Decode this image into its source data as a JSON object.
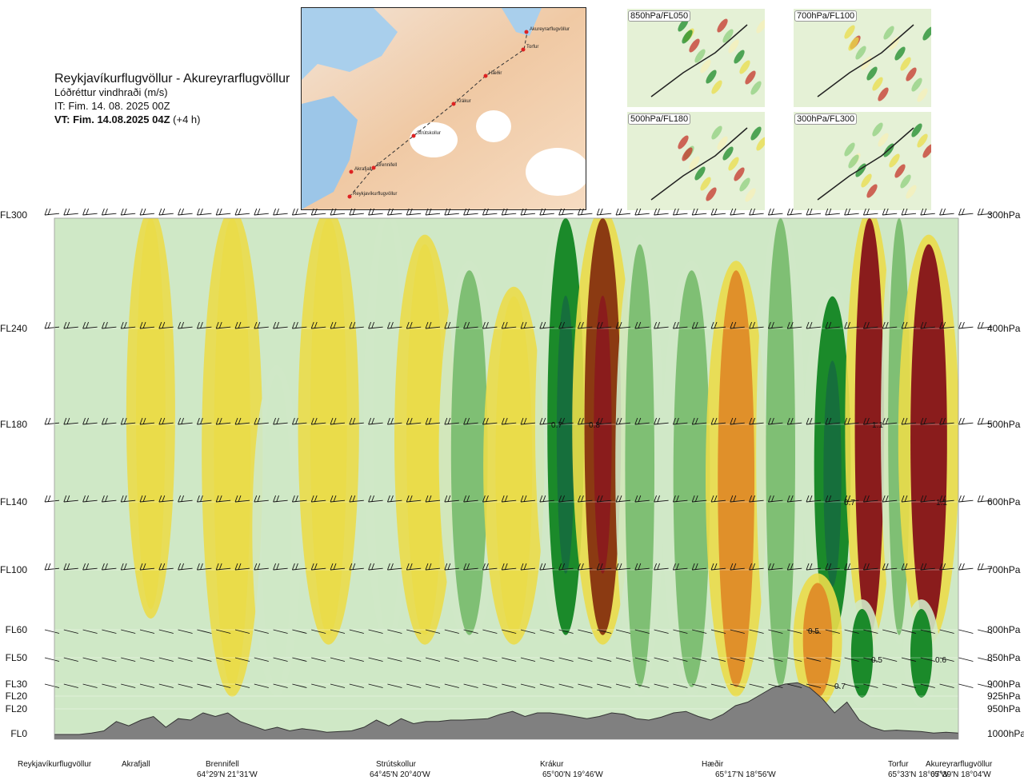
{
  "header": {
    "route": "Reykjavíkurflugvöllur - Akureyrarflugvöllur",
    "variable": "Lóðréttur vindhraði (m/s)",
    "init_time": "IT: Fim. 14. 08. 2025 00Z",
    "valid_time_bold": "VT: Fim. 14.08.2025 04Z",
    "valid_time_offset": "(+4 h)"
  },
  "map": {
    "points": [
      "Akureyrarflugvöllur",
      "Torfur",
      "Hæðir",
      "Krákur",
      "Strútskollur",
      "Brennifell",
      "Akrafjall",
      "Reykjavíkurflugvöllur"
    ]
  },
  "thumbnails": [
    {
      "label": "850hPa/FL050"
    },
    {
      "label": "700hPa/FL100"
    },
    {
      "label": "500hPa/FL180"
    },
    {
      "label": "300hPa/FL300"
    }
  ],
  "colors": {
    "strong_down": "#8a1c1c",
    "down": "#8b3a12",
    "weak_down": "#e0902a",
    "faint_down": "#eadc4a",
    "neutral": "#f6efb8",
    "faint_up": "#cfe8c6",
    "up": "#7fbf74",
    "strong_up": "#1b8a2a",
    "terrain": "#808080"
  },
  "chart_data": {
    "type": "heatmap",
    "title": "Lóðréttur vindhraði (m/s)",
    "flight_levels": [
      {
        "fl": "FL300",
        "hpa": "300hPa"
      },
      {
        "fl": "FL240",
        "hpa": "400hPa"
      },
      {
        "fl": "FL180",
        "hpa": "500hPa"
      },
      {
        "fl": "FL140",
        "hpa": "600hPa"
      },
      {
        "fl": "FL100",
        "hpa": "700hPa"
      },
      {
        "fl": "FL60",
        "hpa": "800hPa"
      },
      {
        "fl": "FL50",
        "hpa": "850hPa"
      },
      {
        "fl": "FL30",
        "hpa": "900hPa"
      },
      {
        "fl": "FL20",
        "hpa": "925hPa"
      },
      {
        "fl": "FL20",
        "hpa": "950hPa"
      },
      {
        "fl": "FL0",
        "hpa": "1000hPa"
      }
    ],
    "locations": [
      {
        "name": "Reykjavíkurflugvöllur",
        "coord": ""
      },
      {
        "name": "Akrafjall",
        "coord": ""
      },
      {
        "name": "Brennifell",
        "coord": "64°29'N 21°31'W"
      },
      {
        "name": "Strútskollur",
        "coord": "64°45'N 20°40'W"
      },
      {
        "name": "Krákur",
        "coord": "65°00'N 19°46'W"
      },
      {
        "name": "Hæðir",
        "coord": "65°17'N 18°56'W"
      },
      {
        "name": "Torfur",
        "coord": "65°33'N 18°07'W"
      },
      {
        "name": "Akureyrarflugvöllur",
        "coord": "65°39'N 18°04'W"
      }
    ],
    "value_labels": [
      "0.7",
      "0.8",
      "1.1",
      "0.7",
      "1.1",
      "0.5",
      "0.5",
      "0.6",
      "0.7"
    ],
    "bands": [
      {
        "x": 0.13,
        "w": 0.04,
        "top": 0.0,
        "bottom": 0.75,
        "v": -0.1
      },
      {
        "x": 0.24,
        "w": 0.05,
        "top": 0.0,
        "bottom": 0.9,
        "v": -0.1
      },
      {
        "x": 0.3,
        "w": 0.04,
        "top": 0.3,
        "bottom": 0.9,
        "v": 0.1
      },
      {
        "x": 0.37,
        "w": 0.05,
        "top": 0.0,
        "bottom": 0.8,
        "v": -0.1
      },
      {
        "x": 0.45,
        "w": 0.04,
        "top": 0.0,
        "bottom": 0.8,
        "v": 0.1
      },
      {
        "x": 0.5,
        "w": 0.05,
        "top": 0.05,
        "bottom": 0.8,
        "v": -0.2
      },
      {
        "x": 0.56,
        "w": 0.05,
        "top": 0.1,
        "bottom": 0.8,
        "v": 0.3
      },
      {
        "x": 0.62,
        "w": 0.05,
        "top": 0.15,
        "bottom": 0.8,
        "v": -0.2
      },
      {
        "x": 0.69,
        "w": 0.05,
        "top": 0.0,
        "bottom": 0.8,
        "v": 0.7
      },
      {
        "x": 0.74,
        "w": 0.05,
        "top": 0.0,
        "bottom": 0.8,
        "v": -0.8
      },
      {
        "x": 0.79,
        "w": 0.04,
        "top": 0.05,
        "bottom": 0.9,
        "v": 0.2
      },
      {
        "x": 0.86,
        "w": 0.05,
        "top": 0.1,
        "bottom": 0.9,
        "v": 0.3
      },
      {
        "x": 0.92,
        "w": 0.05,
        "top": 0.1,
        "bottom": 0.9,
        "v": -0.3
      },
      {
        "x": 0.98,
        "w": 0.04,
        "top": 0.0,
        "bottom": 0.9,
        "v": 0.2
      },
      {
        "x": 1.05,
        "w": 0.05,
        "top": 0.15,
        "bottom": 0.8,
        "v": 0.7
      },
      {
        "x": 1.1,
        "w": 0.04,
        "top": 0.0,
        "bottom": 0.8,
        "v": -1.1
      },
      {
        "x": 1.14,
        "w": 0.03,
        "top": 0.0,
        "bottom": 0.8,
        "v": 0.4
      },
      {
        "x": 1.18,
        "w": 0.05,
        "top": 0.05,
        "bottom": 0.8,
        "v": -1.1
      },
      {
        "x": 1.03,
        "w": 0.04,
        "top": 0.7,
        "bottom": 0.92,
        "v": -0.5
      },
      {
        "x": 1.09,
        "w": 0.03,
        "top": 0.75,
        "bottom": 0.92,
        "v": 0.5
      },
      {
        "x": 1.17,
        "w": 0.03,
        "top": 0.75,
        "bottom": 0.92,
        "v": 0.6
      }
    ],
    "terrain_profile": [
      0,
      0,
      0,
      0.02,
      0.05,
      0.18,
      0.12,
      0.2,
      0.25,
      0.1,
      0.22,
      0.2,
      0.3,
      0.25,
      0.3,
      0.18,
      0.12,
      0.06,
      0.1,
      0.05,
      0.08,
      0.06,
      0.03,
      0.04,
      0.05,
      0.1,
      0.2,
      0.12,
      0.22,
      0.15,
      0.18,
      0.18,
      0.2,
      0.2,
      0.21,
      0.22,
      0.28,
      0.32,
      0.25,
      0.3,
      0.3,
      0.28,
      0.25,
      0.22,
      0.25,
      0.3,
      0.28,
      0.22,
      0.2,
      0.24,
      0.3,
      0.32,
      0.25,
      0.2,
      0.28,
      0.4,
      0.45,
      0.55,
      0.65,
      0.7,
      0.72,
      0.65,
      0.5,
      0.3,
      0.45,
      0.2,
      0.1,
      0.05,
      0.06,
      0.05,
      0.04,
      0.02,
      0.03,
      0.02
    ]
  }
}
